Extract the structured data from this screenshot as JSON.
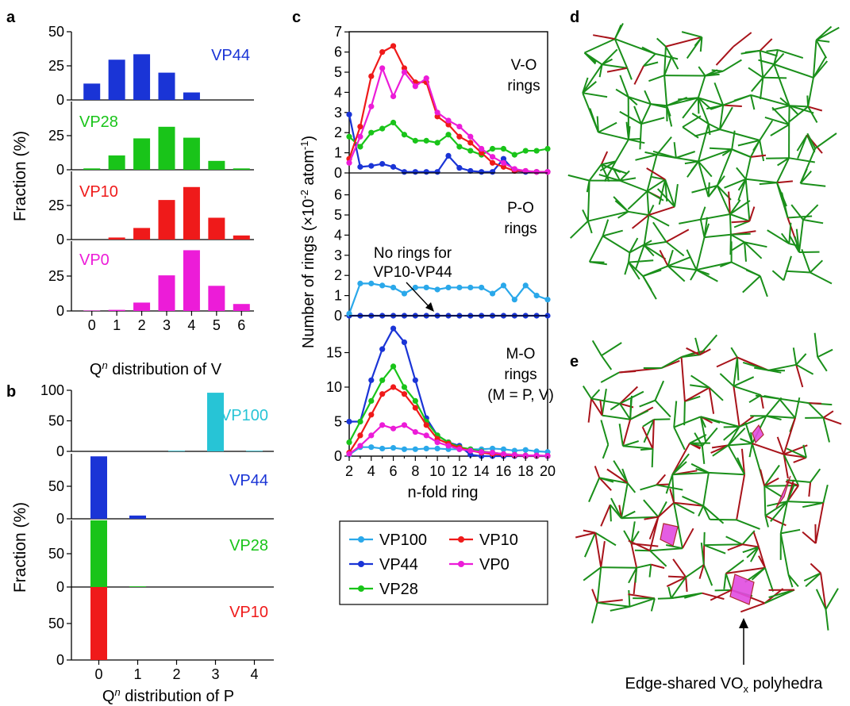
{
  "colors": {
    "VP100": "#27c4d6",
    "VP44": "#1a34d6",
    "VP44_dark": "#0d1ea8",
    "VP28": "#19c419",
    "VP10": "#ef1a1a",
    "VP0": "#ec1cd8",
    "VP100_line": "#2aa8ea",
    "structure_green": "#1a8f1a",
    "structure_red": "#a8131a",
    "polyhedra": "#e24ce0"
  },
  "panels": {
    "a": {
      "letter": "a",
      "ylabel": "Fraction (%)",
      "xlabel_pre": "Q",
      "xlabel_sup": "n",
      "xlabel_post": " distribution of V",
      "categories": [
        "0",
        "1",
        "2",
        "3",
        "4",
        "5",
        "6"
      ],
      "ticks": [
        "0",
        "25",
        "50"
      ],
      "ylim": [
        0,
        50
      ],
      "series": [
        {
          "name": "VP44",
          "values": [
            12,
            29.5,
            33.5,
            20,
            5.5,
            0,
            0
          ]
        },
        {
          "name": "VP28",
          "values": [
            1,
            10.5,
            23,
            31.5,
            23.5,
            6.5,
            1
          ]
        },
        {
          "name": "VP10",
          "values": [
            0,
            1.5,
            8.5,
            29,
            38.5,
            16,
            3
          ]
        },
        {
          "name": "VP0",
          "values": [
            0.3,
            0.8,
            6,
            25.5,
            43.5,
            18,
            5
          ]
        }
      ]
    },
    "b": {
      "letter": "b",
      "ylabel": "Fraction (%)",
      "xlabel_pre": "Q",
      "xlabel_sup": "n",
      "xlabel_post": " distribution of P",
      "categories": [
        "0",
        "1",
        "2",
        "3",
        "4"
      ],
      "ticks": [
        "0",
        "50",
        "100"
      ],
      "ylim": [
        0,
        100
      ],
      "series": [
        {
          "name": "VP100",
          "values": [
            0,
            0,
            1,
            96,
            1
          ]
        },
        {
          "name": "VP44",
          "values": [
            96,
            5,
            0,
            0,
            0
          ]
        },
        {
          "name": "VP28",
          "values": [
            100,
            1,
            0,
            0,
            0
          ]
        },
        {
          "name": "VP10",
          "values": [
            100,
            0,
            0,
            0,
            0
          ]
        }
      ]
    },
    "c": {
      "letter": "c",
      "ylabel_pre": "Number of rings (×10",
      "ylabel_sup": "-2",
      "ylabel_post": " atom",
      "ylabel_sup2": "-1",
      "ylabel_end": ")",
      "xlabel": "n-fold ring",
      "x": [
        2,
        3,
        4,
        5,
        6,
        7,
        8,
        9,
        10,
        11,
        12,
        13,
        14,
        15,
        16,
        17,
        18,
        19,
        20
      ],
      "x_ticks": [
        "2",
        "4",
        "6",
        "8",
        "10",
        "12",
        "14",
        "16",
        "18",
        "20"
      ],
      "subpanels": [
        {
          "label1": "V-O",
          "label2": "rings",
          "ylim": [
            0,
            7
          ],
          "ticks": [
            "0",
            "1",
            "2",
            "3",
            "4",
            "5",
            "6",
            "7"
          ],
          "series": [
            {
              "name": "VP44",
              "values": [
                2.9,
                0.3,
                0.35,
                0.45,
                0.3,
                0.05,
                0.05,
                0.05,
                0.05,
                0.85,
                0.25,
                0.1,
                0.05,
                0.05,
                0.7,
                0.1,
                0.05,
                0.05,
                0.05
              ]
            },
            {
              "name": "VP28",
              "values": [
                1.8,
                1.3,
                2.0,
                2.2,
                2.5,
                1.9,
                1.6,
                1.6,
                1.5,
                1.9,
                1.3,
                1.1,
                0.9,
                1.2,
                1.2,
                0.9,
                1.1,
                1.1,
                1.2
              ]
            },
            {
              "name": "VP10",
              "values": [
                0.7,
                2.3,
                4.8,
                6.0,
                6.3,
                5.2,
                4.5,
                4.5,
                2.8,
                2.4,
                1.8,
                1.5,
                1.0,
                0.5,
                0.3,
                0.1,
                0.1,
                0.05,
                0.05
              ]
            },
            {
              "name": "VP0",
              "values": [
                0.5,
                1.8,
                3.3,
                5.2,
                3.8,
                5.0,
                4.3,
                4.7,
                3.0,
                2.6,
                2.3,
                1.8,
                1.2,
                0.8,
                0.5,
                0.2,
                0.1,
                0.05,
                0.05
              ]
            }
          ]
        },
        {
          "label1": "P-O",
          "label2": "rings",
          "note1": "No rings for",
          "note2": "VP10-VP44",
          "ylim": [
            0,
            7
          ],
          "ticks": [
            "0",
            "1",
            "2",
            "3",
            "4",
            "5",
            "6"
          ],
          "series": [
            {
              "name": "VP100",
              "values": [
                0.1,
                1.6,
                1.6,
                1.5,
                1.4,
                1.1,
                1.4,
                1.4,
                1.3,
                1.4,
                1.4,
                1.4,
                1.4,
                1.1,
                1.5,
                0.8,
                1.5,
                1.0,
                0.8
              ]
            },
            {
              "name": "VP44",
              "values": [
                0,
                0,
                0,
                0,
                0,
                0,
                0,
                0,
                0,
                0,
                0,
                0,
                0,
                0,
                0,
                0,
                0,
                0,
                0
              ]
            }
          ]
        },
        {
          "label1": "M-O",
          "label2": "rings",
          "label3": "(M = P, V)",
          "ylim": [
            0,
            20
          ],
          "ticks": [
            "0",
            "5",
            "10",
            "15"
          ],
          "series": [
            {
              "name": "VP100",
              "values": [
                0.2,
                1.3,
                1.3,
                1.1,
                1.2,
                1.0,
                1.0,
                1.1,
                1.1,
                1.0,
                1.0,
                1.0,
                1.0,
                1.1,
                1.0,
                0.8,
                0.9,
                0.7,
                0.6
              ]
            },
            {
              "name": "VP44",
              "values": [
                5.0,
                5.0,
                11.0,
                15.5,
                18.5,
                16.5,
                11.0,
                5.5,
                3.0,
                2.0,
                1.5,
                0.2,
                0.0,
                0.0,
                0.0,
                0.0,
                0.0,
                0.0,
                0.0
              ]
            },
            {
              "name": "VP28",
              "values": [
                2.0,
                5.0,
                8.0,
                11.0,
                13.0,
                10.0,
                8.0,
                5.0,
                3.0,
                2.0,
                1.3,
                1.0,
                0.7,
                0.5,
                0.3,
                0.2,
                0.1,
                0.05,
                0.05
              ]
            },
            {
              "name": "VP10",
              "values": [
                0.5,
                3.0,
                6.0,
                9.0,
                10.0,
                9.0,
                7.0,
                4.5,
                2.5,
                1.8,
                1.2,
                0.8,
                0.5,
                0.3,
                0.2,
                0.1,
                0.05,
                0.05,
                0.05
              ]
            },
            {
              "name": "VP0",
              "values": [
                0.3,
                1.5,
                3.0,
                4.5,
                4.0,
                4.5,
                3.5,
                3.0,
                2.0,
                1.5,
                1.0,
                0.8,
                0.6,
                0.5,
                0.3,
                0.2,
                0.1,
                0.1,
                0.05
              ]
            }
          ]
        }
      ],
      "legend": [
        {
          "name": "VP100",
          "color_key": "VP100_line"
        },
        {
          "name": "VP10",
          "color_key": "VP10"
        },
        {
          "name": "VP44",
          "color_key": "VP44"
        },
        {
          "name": "VP0",
          "color_key": "VP0"
        },
        {
          "name": "VP28",
          "color_key": "VP28"
        }
      ]
    },
    "d": {
      "letter": "d"
    },
    "e": {
      "letter": "e",
      "caption_pre": "Edge-shared VO",
      "caption_sub": "x",
      "caption_post": " polyhedra"
    }
  }
}
